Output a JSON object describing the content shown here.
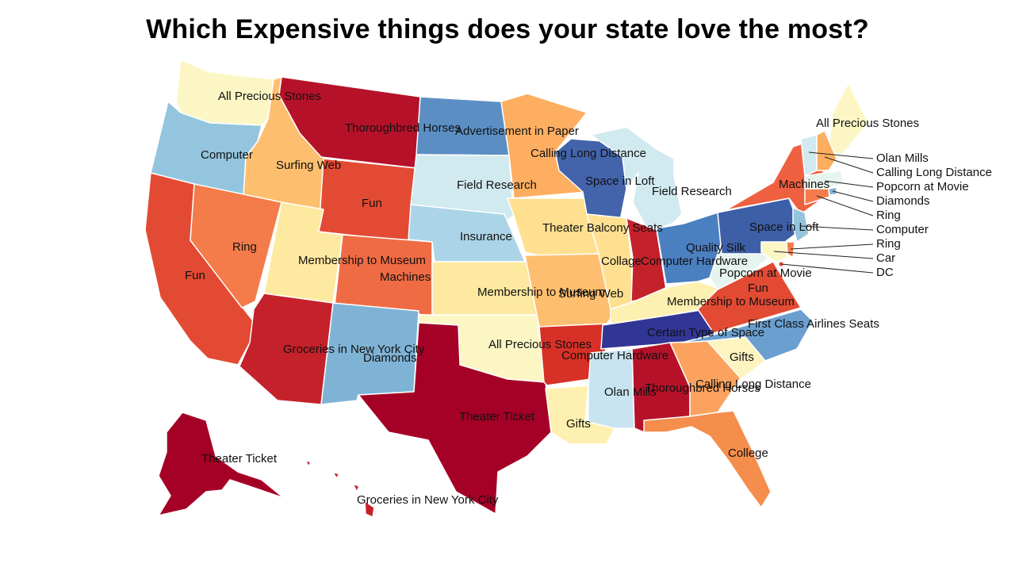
{
  "title": "Which Expensive things does your state love the most?",
  "colors": {
    "dark_red": "#a50026",
    "red": "#c4212b",
    "red_orange": "#e34a33",
    "orange": "#f46d43",
    "light_orange": "#fdae61",
    "tan": "#fee090",
    "cream": "#fbf6c4",
    "pale_blue": "#d1eaf0",
    "light_blue": "#abd9e9",
    "sky_blue": "#74add1",
    "mid_blue": "#4575b4",
    "dark_blue": "#313695"
  },
  "states": [
    {
      "id": "WA",
      "label": "All Precious Stones",
      "color": "#fbf6c4"
    },
    {
      "id": "OR",
      "label": "Computer",
      "color": "#93c5de"
    },
    {
      "id": "CA",
      "label": "Fun",
      "color": "#e34a33"
    },
    {
      "id": "ID",
      "label": "Surfing Web",
      "color": "#fdbf6f"
    },
    {
      "id": "NV",
      "label": "Ring",
      "color": "#f47c4a"
    },
    {
      "id": "MT",
      "label": "Thoroughbred Horses",
      "color": "#b5122a"
    },
    {
      "id": "WY",
      "label": "Fun",
      "color": "#e34a33"
    },
    {
      "id": "UT",
      "label": "Membership to Museum",
      "color": "#fee9a0"
    },
    {
      "id": "CO",
      "label": "Machines",
      "color": "#ef6b44"
    },
    {
      "id": "AZ",
      "label": "Groceries in New York City",
      "color": "#c4212b"
    },
    {
      "id": "NM",
      "label": "Diamonds",
      "color": "#7fb3d5"
    },
    {
      "id": "ND",
      "label": "Advertisement in Paper",
      "color": "#5b8fc4"
    },
    {
      "id": "SD",
      "label": "Field Research",
      "color": "#d1eaf0"
    },
    {
      "id": "NE",
      "label": "Insurance",
      "color": "#abd4e8"
    },
    {
      "id": "KS",
      "label": "Membership to Museum",
      "color": "#fde9a0"
    },
    {
      "id": "OK",
      "label": "All Precious Stones",
      "color": "#fbf6c4"
    },
    {
      "id": "TX",
      "label": "Theater Ticket",
      "color": "#a50026"
    },
    {
      "id": "MN",
      "label": "Calling Long Distance",
      "color": "#fdae61"
    },
    {
      "id": "IA",
      "label": "Theater Balcony Seats",
      "color": "#fee090"
    },
    {
      "id": "MO",
      "label": "Surfing Web",
      "color": "#fdbf6f"
    },
    {
      "id": "AR",
      "label": "Computer Hardware",
      "color": "#d73027"
    },
    {
      "id": "LA",
      "label": "Gifts",
      "color": "#fef0b0"
    },
    {
      "id": "WI",
      "label": "Space in Loft",
      "color": "#4364ab"
    },
    {
      "id": "MI",
      "label": "Field Research",
      "color": "#d1eaf0"
    },
    {
      "id": "IL",
      "label": "Collage",
      "color": "#fee090"
    },
    {
      "id": "IN",
      "label": "Computer Hardware",
      "color": "#c4212b"
    },
    {
      "id": "OH",
      "label": "Quality Silk",
      "color": "#4a7fc0"
    },
    {
      "id": "KY",
      "label": "Membership to Museum",
      "color": "#fef0b0"
    },
    {
      "id": "TN",
      "label": "Certain Type of Space",
      "color": "#313695"
    },
    {
      "id": "MS",
      "label": "Olan Mills",
      "color": "#c7e4f0"
    },
    {
      "id": "AL",
      "label": "Thoroughbred Horses",
      "color": "#b5122a"
    },
    {
      "id": "GA",
      "label": "Calling Long Distance",
      "color": "#fba35e"
    },
    {
      "id": "FL",
      "label": "College",
      "color": "#f58d4c"
    },
    {
      "id": "SC",
      "label": "Gifts",
      "color": "#fef4c0"
    },
    {
      "id": "NC",
      "label": "First Class Airlines Seats",
      "color": "#6a9fcf"
    },
    {
      "id": "VA",
      "label": "Fun",
      "color": "#e34a33"
    },
    {
      "id": "WV",
      "label": "Popcorn at Movie",
      "color": "#e6f4ee"
    },
    {
      "id": "PA",
      "label": "Space in Loft",
      "color": "#3d5fa8"
    },
    {
      "id": "NY",
      "label": "Machines",
      "color": "#ef6040"
    },
    {
      "id": "ME",
      "label": "All Precious Stones",
      "color": "#fbf6c4"
    },
    {
      "id": "AK",
      "label": "Theater Ticket",
      "color": "#a50026"
    },
    {
      "id": "HI",
      "label": "Groceries in New York City",
      "color": "#c4212b"
    }
  ],
  "small_states": [
    {
      "id": "VT",
      "label": "Olan Mills",
      "color": "#d1eaf0"
    },
    {
      "id": "NH",
      "label": "Calling Long Distance",
      "color": "#fdae61"
    },
    {
      "id": "MA",
      "label": "Popcorn at Movie",
      "color": "#e6f4ee"
    },
    {
      "id": "RI",
      "label": "Diamonds",
      "color": "#7fb3d5"
    },
    {
      "id": "CT",
      "label": "Ring",
      "color": "#f47c4a"
    },
    {
      "id": "NJ",
      "label": "Computer",
      "color": "#93c5de"
    },
    {
      "id": "DE",
      "label": "Ring",
      "color": "#f47c4a"
    },
    {
      "id": "MD",
      "label": "Car",
      "color": "#fbf6c4"
    },
    {
      "id": "DC",
      "label": "DC",
      "color": "#e34a33"
    }
  ]
}
